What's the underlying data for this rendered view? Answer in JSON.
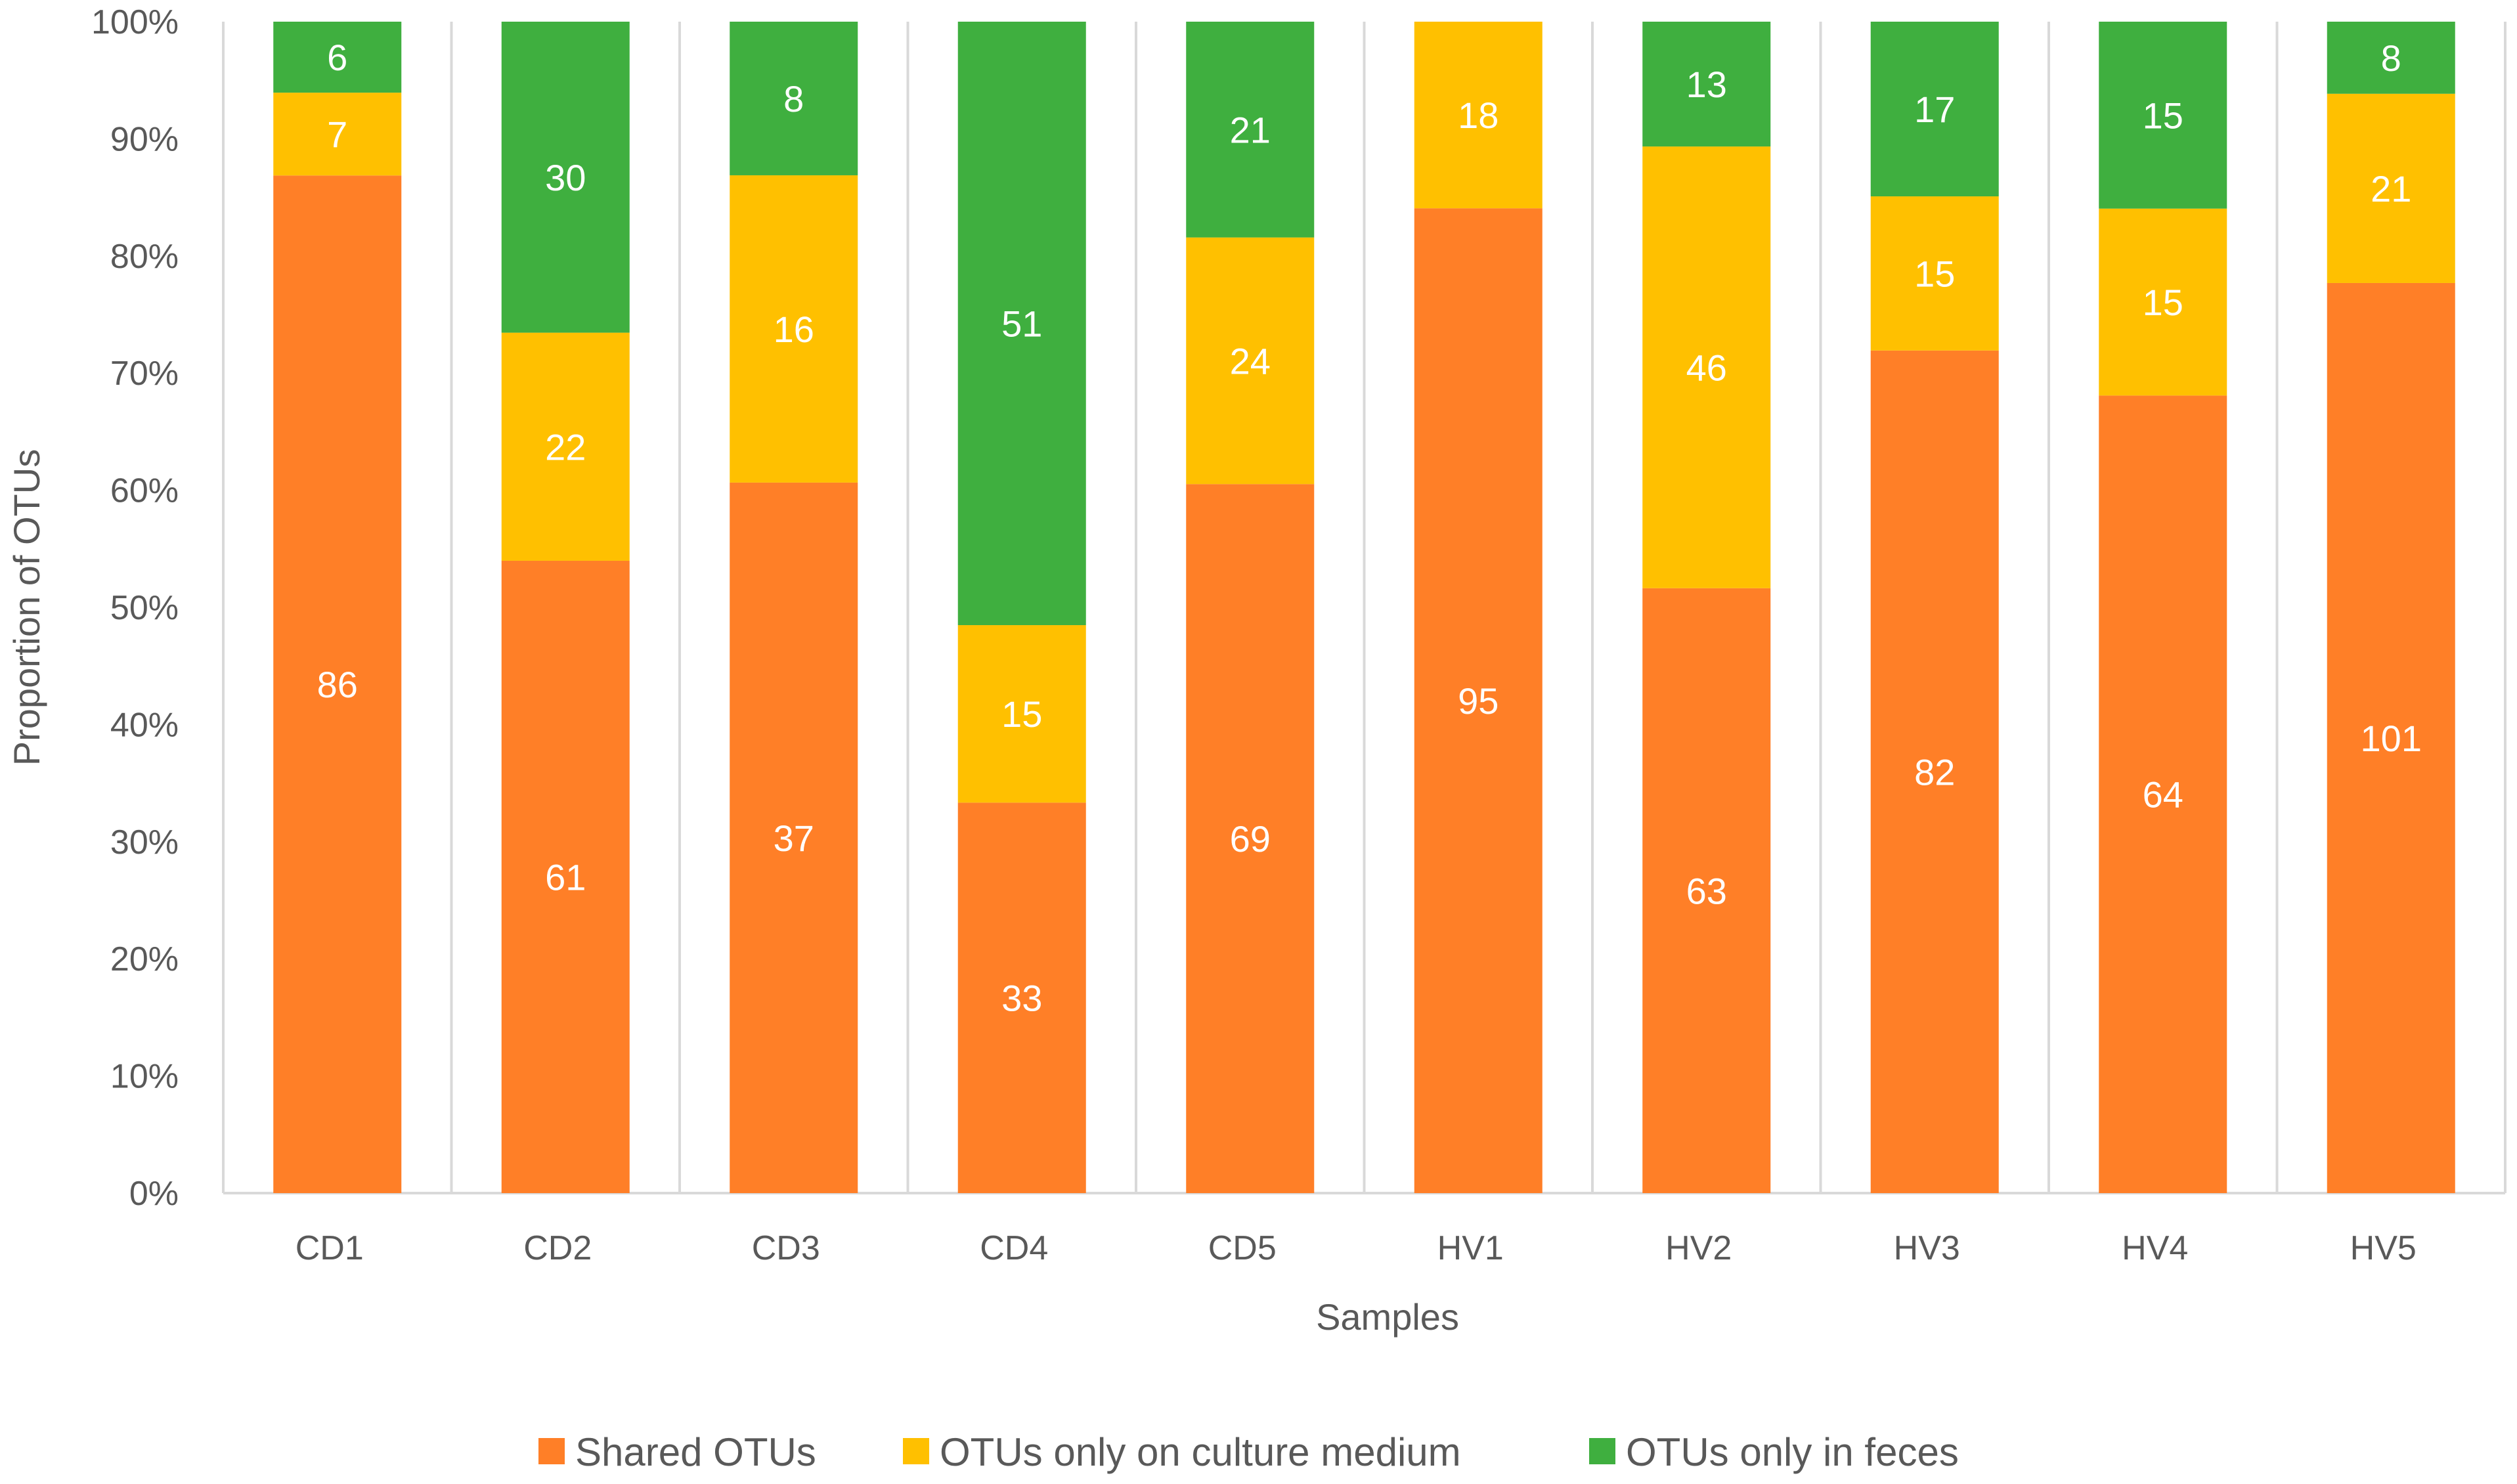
{
  "chart_data": {
    "type": "bar",
    "stacked": true,
    "normalized": true,
    "xlabel": "Samples",
    "ylabel": "Proportion of OTUs",
    "ylim": [
      0,
      100
    ],
    "yticks": [
      "0%",
      "10%",
      "20%",
      "30%",
      "40%",
      "50%",
      "60%",
      "70%",
      "80%",
      "90%",
      "100%"
    ],
    "categories": [
      "CD1",
      "CD2",
      "CD3",
      "CD4",
      "CD5",
      "HV1",
      "HV2",
      "HV3",
      "HV4",
      "HV5"
    ],
    "series": [
      {
        "name": "Shared OTUs",
        "color": "#FF7F27",
        "values": [
          86,
          61,
          37,
          33,
          69,
          95,
          63,
          82,
          64,
          101
        ]
      },
      {
        "name": "OTUs only on culture medium",
        "color": "#FFC000",
        "values": [
          7,
          22,
          16,
          15,
          24,
          18,
          46,
          15,
          15,
          21
        ]
      },
      {
        "name": "OTUs only in feces",
        "color": "#3FAF3F",
        "values": [
          6,
          30,
          8,
          51,
          21,
          0,
          13,
          17,
          15,
          8
        ]
      }
    ],
    "grid": "vertical separators",
    "legend_position": "bottom"
  }
}
